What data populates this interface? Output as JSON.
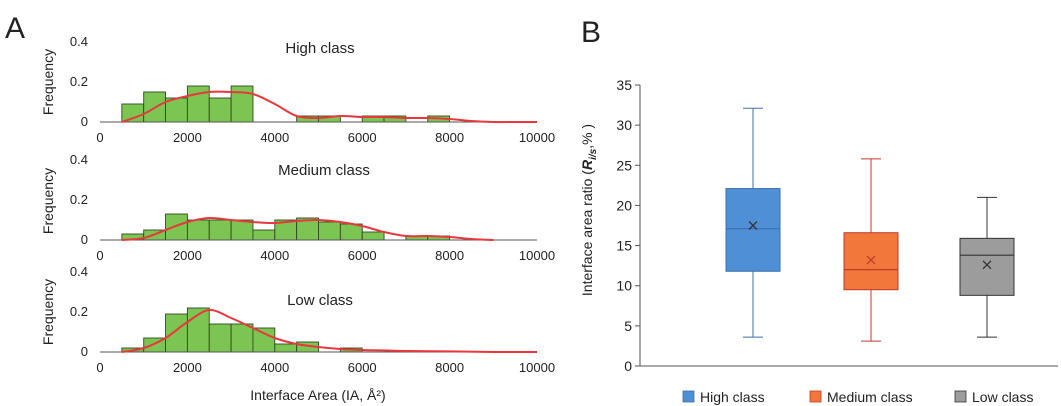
{
  "panels": [
    {
      "letter": "A"
    },
    {
      "letter": "B"
    }
  ],
  "chart_data": [
    {
      "type": "bar",
      "title": "High class",
      "ylabel": "Frequency",
      "xlabel": "",
      "xlim": [
        0,
        10000
      ],
      "ylim": [
        0,
        0.4
      ],
      "xticks": [
        "0",
        "2000",
        "4000",
        "6000",
        "8000",
        "10000"
      ],
      "yticks": [
        "0",
        "0.2",
        "0.4"
      ],
      "bin_width": 500,
      "bars": [
        {
          "x": 750,
          "y": 0.09
        },
        {
          "x": 1250,
          "y": 0.15
        },
        {
          "x": 1750,
          "y": 0.12
        },
        {
          "x": 2250,
          "y": 0.18
        },
        {
          "x": 2750,
          "y": 0.12
        },
        {
          "x": 3250,
          "y": 0.18
        },
        {
          "x": 4750,
          "y": 0.03
        },
        {
          "x": 5250,
          "y": 0.03
        },
        {
          "x": 6250,
          "y": 0.03
        },
        {
          "x": 6750,
          "y": 0.03
        },
        {
          "x": 7750,
          "y": 0.03
        }
      ],
      "curve": {
        "x": [
          500,
          1000,
          1500,
          2000,
          2500,
          3000,
          3500,
          4000,
          4500,
          5000,
          5500,
          6000,
          6500,
          7000,
          7500,
          8000,
          8500,
          9000,
          9500,
          10000
        ],
        "y": [
          0.0,
          0.04,
          0.1,
          0.13,
          0.15,
          0.15,
          0.14,
          0.09,
          0.03,
          0.02,
          0.03,
          0.025,
          0.025,
          0.02,
          0.02,
          0.015,
          0.005,
          0.0,
          0.0,
          0.0
        ]
      }
    },
    {
      "type": "bar",
      "title": "Medium class",
      "ylabel": "Frequency",
      "xlabel": "",
      "xlim": [
        0,
        10000
      ],
      "ylim": [
        0,
        0.4
      ],
      "xticks": [
        "0",
        "2000",
        "4000",
        "6000",
        "8000",
        "10000"
      ],
      "yticks": [
        "0",
        "0.2",
        "0.4"
      ],
      "bin_width": 500,
      "bars": [
        {
          "x": 750,
          "y": 0.03
        },
        {
          "x": 1250,
          "y": 0.05
        },
        {
          "x": 1750,
          "y": 0.13
        },
        {
          "x": 2250,
          "y": 0.1
        },
        {
          "x": 2750,
          "y": 0.1
        },
        {
          "x": 3250,
          "y": 0.1
        },
        {
          "x": 3750,
          "y": 0.05
        },
        {
          "x": 4250,
          "y": 0.1
        },
        {
          "x": 4750,
          "y": 0.11
        },
        {
          "x": 5250,
          "y": 0.09
        },
        {
          "x": 5750,
          "y": 0.08
        },
        {
          "x": 6250,
          "y": 0.04
        },
        {
          "x": 7250,
          "y": 0.02
        },
        {
          "x": 7750,
          "y": 0.02
        }
      ],
      "curve": {
        "x": [
          500,
          1000,
          1500,
          2000,
          2500,
          3000,
          3500,
          4000,
          4500,
          5000,
          5500,
          6000,
          6500,
          7000,
          7500,
          8000,
          8500,
          9000
        ],
        "y": [
          0.0,
          0.01,
          0.05,
          0.09,
          0.11,
          0.1,
          0.09,
          0.085,
          0.095,
          0.1,
          0.09,
          0.07,
          0.04,
          0.02,
          0.02,
          0.015,
          0.005,
          0.0
        ]
      }
    },
    {
      "type": "bar",
      "title": "Low class",
      "ylabel": "Frequency",
      "xlabel": "Interface Area (IA, Å²)",
      "xlim": [
        0,
        10000
      ],
      "ylim": [
        0,
        0.4
      ],
      "xticks": [
        "0",
        "2000",
        "4000",
        "6000",
        "8000",
        "10000"
      ],
      "yticks": [
        "0",
        "0.2",
        "0.4"
      ],
      "bin_width": 500,
      "bars": [
        {
          "x": 750,
          "y": 0.02
        },
        {
          "x": 1250,
          "y": 0.07
        },
        {
          "x": 1750,
          "y": 0.19
        },
        {
          "x": 2250,
          "y": 0.22
        },
        {
          "x": 2750,
          "y": 0.14
        },
        {
          "x": 3250,
          "y": 0.14
        },
        {
          "x": 3750,
          "y": 0.12
        },
        {
          "x": 4250,
          "y": 0.04
        },
        {
          "x": 4750,
          "y": 0.05
        },
        {
          "x": 5750,
          "y": 0.02
        }
      ],
      "curve": {
        "x": [
          500,
          1000,
          1500,
          2000,
          2500,
          3000,
          3500,
          4000,
          4500,
          5000,
          5500,
          6000,
          6500,
          7000,
          8000,
          9000,
          10000
        ],
        "y": [
          0.0,
          0.02,
          0.07,
          0.15,
          0.21,
          0.17,
          0.12,
          0.07,
          0.04,
          0.025,
          0.015,
          0.01,
          0.008,
          0.005,
          0.003,
          0.0,
          0.0
        ]
      }
    },
    {
      "type": "box",
      "ylabel": "Interface  area ratio (",
      "ylabel_bold": "R",
      "ylabel_sub": "i/s",
      "ylabel_end": ",% )",
      "ylim": [
        0,
        35
      ],
      "yticks": [
        "0",
        "5",
        "10",
        "15",
        "20",
        "25",
        "30",
        "35"
      ],
      "series": [
        {
          "name": "High class",
          "color": "#4f8fd6",
          "min": 3.6,
          "q1": 11.8,
          "median": 17.1,
          "q3": 22.1,
          "max": 32.1,
          "mean": 17.5
        },
        {
          "name": "Medium class",
          "color": "#f2773b",
          "min": 3.1,
          "q1": 9.5,
          "median": 12.0,
          "q3": 16.6,
          "max": 25.8,
          "mean": 13.2
        },
        {
          "name": "Low class",
          "color": "#9c9c9c",
          "min": 3.6,
          "q1": 8.8,
          "median": 13.8,
          "q3": 15.9,
          "max": 21.0,
          "mean": 12.6
        }
      ],
      "legend_position": "bottom"
    }
  ]
}
